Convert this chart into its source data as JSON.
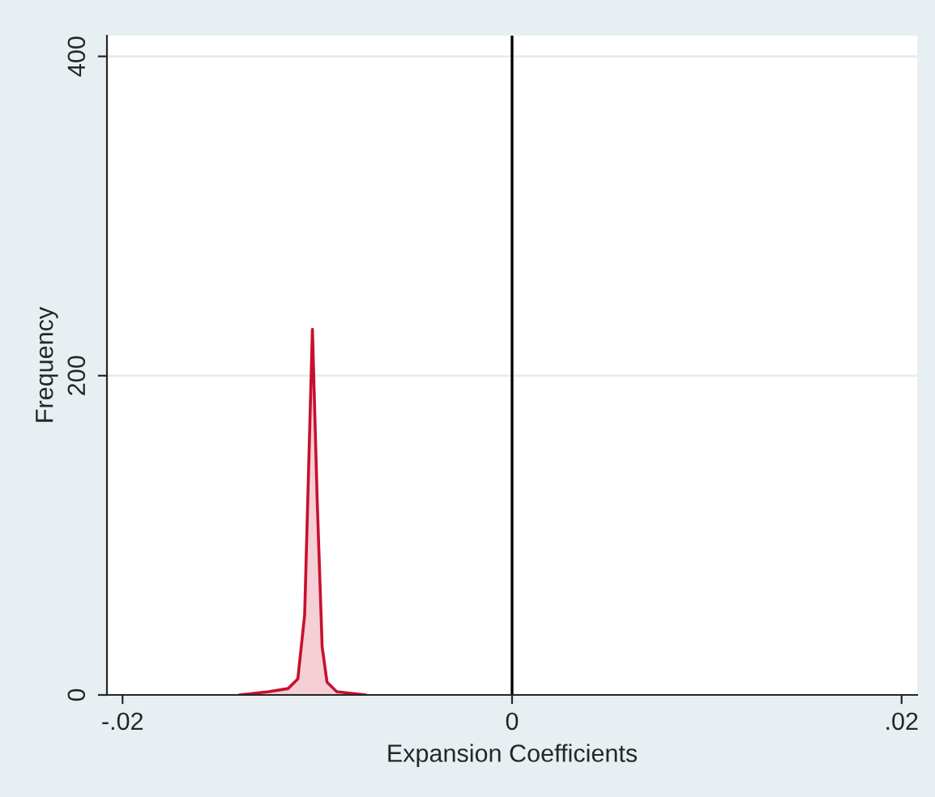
{
  "chart_data": {
    "type": "area",
    "xlabel": "Expansion Coefficients",
    "ylabel": "Frequency",
    "x": [
      -0.014,
      -0.0125,
      -0.0115,
      -0.011,
      -0.01065,
      -0.01025,
      -0.01,
      -0.00975,
      -0.0095,
      -0.009,
      -0.0075
    ],
    "series": [
      {
        "color": "#c8102e",
        "values": [
          0,
          2,
          4,
          10,
          50,
          229,
          120,
          30,
          8,
          2,
          0
        ]
      }
    ],
    "xlim": [
      -0.0208,
      0.0208
    ],
    "xticks": [
      {
        "value": -0.02,
        "label": "-.02"
      },
      0,
      {
        "value": 0.02,
        "label": ".02"
      }
    ],
    "ylim": [
      0,
      413
    ],
    "yticks": [
      0,
      200,
      400
    ],
    "ref_lines": [
      {
        "axis": "x",
        "value": 0,
        "color": "#000000"
      }
    ],
    "grid": "y",
    "legend": false
  }
}
